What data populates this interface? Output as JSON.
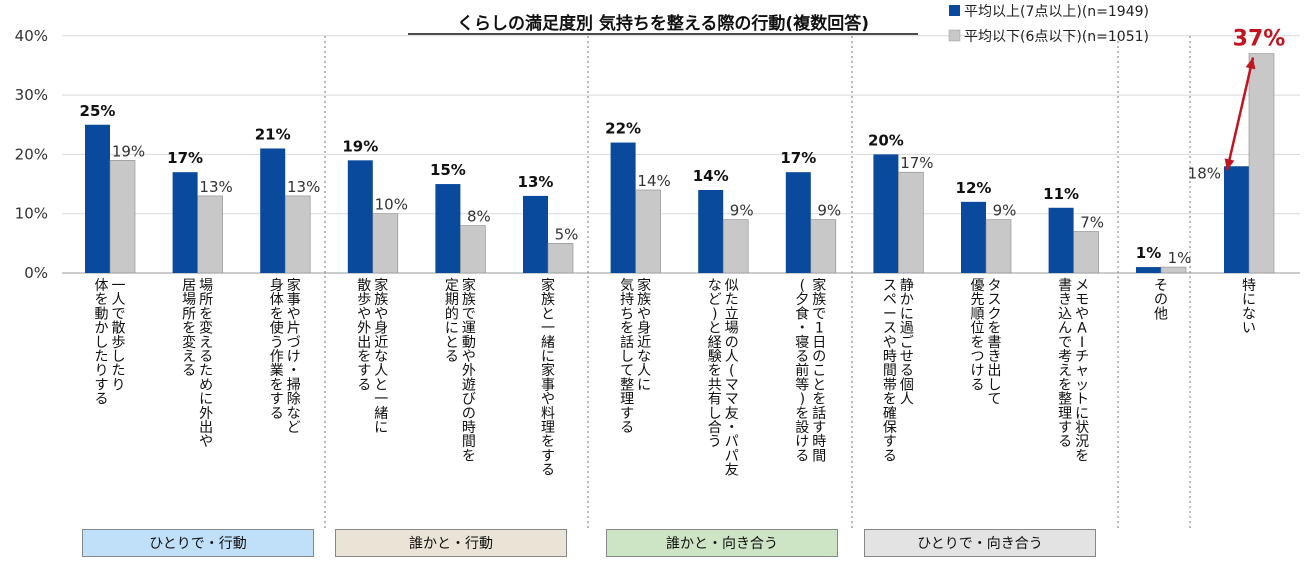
{
  "chart_data": {
    "type": "bar",
    "title": "くらしの満足度別 気持ちを整える際の行動(複数回答)",
    "yticks": [
      "0%",
      "10%",
      "20%",
      "30%",
      "40%"
    ],
    "ylim": [
      0,
      40
    ],
    "series": [
      {
        "name": "平均以上(7点以上)(n=1949)",
        "color": "#0a4a9c",
        "values": [
          25,
          17,
          21,
          19,
          15,
          13,
          22,
          14,
          17,
          20,
          12,
          11,
          1,
          18
        ]
      },
      {
        "name": "平均以下(6点以下)(n=1051)",
        "color": "#c8c8c8",
        "values": [
          19,
          13,
          13,
          10,
          8,
          5,
          14,
          9,
          9,
          17,
          9,
          7,
          1,
          37
        ]
      }
    ],
    "categories": [
      [
        "一人で散歩したり",
        "体を動かしたりする"
      ],
      [
        "場所を変えるために外出や",
        "居場所を変える"
      ],
      [
        "家事や片づけ・掃除など",
        "身体を使う作業をする"
      ],
      [
        "家族や身近な人と一緒に",
        "散歩や外出をする"
      ],
      [
        "家族で運動や外遊びの時間を",
        "定期的にとる"
      ],
      [
        "家族と一緒に家事や料理をする"
      ],
      [
        "家族や身近な人に",
        "気持ちを話して整理する"
      ],
      [
        "似た立場の人(ママ友・パパ友",
        "など)と経験を共有し合う"
      ],
      [
        "家族で1日のことを話す時間",
        "(夕食・寝る前等)を設ける"
      ],
      [
        "静かに過ごせる個人",
        "スペースや時間帯を確保する"
      ],
      [
        "タスクを書き出して",
        "優先順位をつける"
      ],
      [
        "メモやAIチャットに状況を",
        "書き込んで考えを整理する"
      ],
      [
        "その他"
      ],
      [
        "特にない"
      ]
    ],
    "labels_hi": [
      "25%",
      "17%",
      "21%",
      "19%",
      "15%",
      "13%",
      "22%",
      "14%",
      "17%",
      "20%",
      "12%",
      "11%",
      "1%",
      "18%"
    ],
    "labels_lo": [
      "19%",
      "13%",
      "13%",
      "10%",
      "8%",
      "5%",
      "14%",
      "9%",
      "9%",
      "17%",
      "9%",
      "7%",
      "1%",
      "37%"
    ],
    "groups": [
      {
        "label": "ひとりで・行動",
        "color": "#bfe0f8"
      },
      {
        "label": "誰かと・行動",
        "color": "#e9e4d6"
      },
      {
        "label": "誰かと・向き合う",
        "color": "#cde5c4"
      },
      {
        "label": "ひとりで・向き合う",
        "color": "#e3e3e3"
      }
    ],
    "highlight_color": "#c0141e",
    "legend_position": "top-right"
  }
}
